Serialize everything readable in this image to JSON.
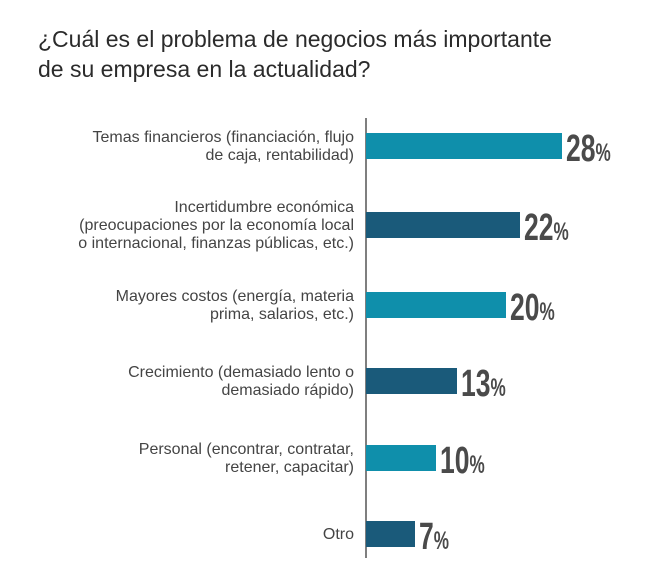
{
  "chart_data": {
    "type": "bar",
    "orientation": "horizontal",
    "title": "¿Cuál es el problema de negocios más importante\nde su empresa en la actualidad?",
    "categories": [
      "Temas financieros (financiación, flujo\nde caja, rentabilidad)",
      "Incertidumbre económica\n(preocupaciones por la economía local\no internacional, finanzas públicas, etc.)",
      "Mayores costos (energía, materia\nprima, salarios, etc.)",
      "Crecimiento (demasiado lento o\ndemasiado rápido)",
      "Personal (encontrar, contratar,\nretener, capacitar)",
      "Otro"
    ],
    "values": [
      28,
      22,
      20,
      13,
      10,
      7
    ],
    "value_labels": [
      "28",
      "22",
      "20",
      "13",
      "10",
      "7"
    ],
    "unit": "%",
    "xlim": [
      0,
      28
    ],
    "grid": false,
    "legend": "none",
    "colors": [
      "#0f8fab",
      "#1a5a7a",
      "#0f8fab",
      "#1a5a7a",
      "#0f8fab",
      "#1a5a7a"
    ],
    "axis_color": "#555555"
  }
}
